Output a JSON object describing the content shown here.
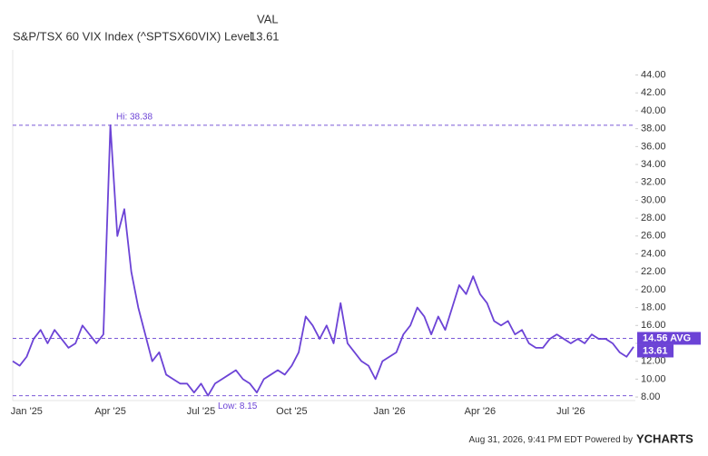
{
  "chart_data": {
    "type": "line",
    "header": {
      "column": "VAL",
      "name": "S&P/TSX 60 VIX Index (^SPTSX60VIX) Level",
      "value": 13.61
    },
    "categories": [
      null,
      null,
      "Jan '25",
      null,
      null,
      null,
      null,
      null,
      null,
      null,
      null,
      null,
      null,
      null,
      "Apr '25",
      null,
      null,
      null,
      null,
      null,
      null,
      null,
      null,
      null,
      null,
      null,
      null,
      "Jul '25",
      null,
      null,
      null,
      null,
      null,
      null,
      null,
      null,
      null,
      null,
      null,
      null,
      "Oct '25",
      null,
      null,
      null,
      null,
      null,
      null,
      null,
      null,
      null,
      null,
      null,
      null,
      null,
      "Jan '26",
      null,
      null,
      null,
      null,
      null,
      null,
      null,
      null,
      null,
      null,
      null,
      null,
      "Apr '26",
      null,
      null,
      null,
      null,
      null,
      null,
      null,
      null,
      null,
      null,
      null,
      null,
      "Jul '26",
      null,
      null,
      null,
      null,
      null,
      null,
      null,
      null,
      null
    ],
    "series": [
      {
        "name": "S&P/TSX 60 VIX Index (^SPTSX60VIX) Level",
        "color": "#6c43d6",
        "values": [
          12,
          11.5,
          12.5,
          14.5,
          15.5,
          14,
          15.5,
          14.5,
          13.5,
          14,
          16,
          15,
          14,
          15,
          38.38,
          26,
          29,
          22,
          18,
          15,
          12,
          13,
          10.5,
          10,
          9.5,
          9.5,
          8.5,
          9.5,
          8.15,
          9.5,
          10,
          10.5,
          11,
          10,
          9.5,
          8.5,
          10,
          10.5,
          11,
          10.5,
          11.5,
          13,
          17,
          16,
          14.5,
          16,
          14,
          18.5,
          14,
          13,
          12,
          11.5,
          10,
          12,
          12.5,
          13,
          15,
          16,
          18,
          17,
          15,
          17,
          15.5,
          18,
          20.5,
          19.5,
          21.5,
          19.5,
          18.5,
          16.5,
          16,
          16.5,
          15,
          15.5,
          14,
          13.5,
          13.5,
          14.5,
          15,
          14.5,
          14,
          14.5,
          14,
          15,
          14.5,
          14.5,
          14,
          13,
          12.5,
          13.61
        ]
      }
    ],
    "ylim": [
      7.6,
      46.8
    ],
    "yticks": [
      {
        "value": 8,
        "label": "8.00"
      },
      {
        "value": 10,
        "label": "10.00"
      },
      {
        "value": 12,
        "label": "12.00"
      },
      {
        "value": 14,
        "label": "14.00"
      },
      {
        "value": 16,
        "label": "16.00"
      },
      {
        "value": 18,
        "label": "18.00"
      },
      {
        "value": 20,
        "label": "20.00"
      },
      {
        "value": 22,
        "label": "22.00"
      },
      {
        "value": 24,
        "label": "24.00"
      },
      {
        "value": 26,
        "label": "26.00"
      },
      {
        "value": 28,
        "label": "28.00"
      },
      {
        "value": 30,
        "label": "30.00"
      },
      {
        "value": 32,
        "label": "32.00"
      },
      {
        "value": 34,
        "label": "34.00"
      },
      {
        "value": 36,
        "label": "36.00"
      },
      {
        "value": 38,
        "label": "38.00"
      },
      {
        "value": 40,
        "label": "40.00"
      },
      {
        "value": 42,
        "label": "42.00"
      },
      {
        "value": 44,
        "label": "44.00"
      }
    ],
    "average": {
      "value": 14.56,
      "label": "14.56 AVG"
    },
    "high": {
      "value": 38.38,
      "label": "Hi: 38.38"
    },
    "low": {
      "value": 8.15,
      "label": "Low: 8.15"
    },
    "footer": {
      "timestamp": "Aug 31, 2026, 9:41 PM EDT",
      "powered": "Powered by",
      "brand": "YCHARTS"
    }
  }
}
